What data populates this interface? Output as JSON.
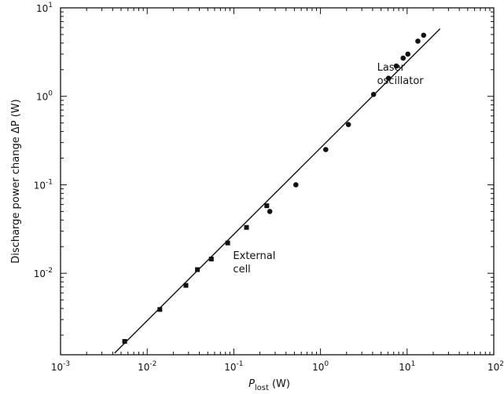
{
  "chart_data": {
    "type": "scatter",
    "x_scale": "log",
    "y_scale": "log",
    "xlim": [
      0.001,
      100
    ],
    "ylim": [
      0.0012,
      10
    ],
    "grid": false,
    "xlabel": {
      "main": "P",
      "sub": "lost",
      "unit": "(W)"
    },
    "ylabel": "Discharge power change ΔP (W)",
    "x_ticks": [
      {
        "value": 0.001,
        "base": "10",
        "exp": "-3"
      },
      {
        "value": 0.01,
        "base": "10",
        "exp": "-2"
      },
      {
        "value": 0.1,
        "base": "10",
        "exp": "-1"
      },
      {
        "value": 1,
        "base": "10",
        "exp": "0"
      },
      {
        "value": 10,
        "base": "10",
        "exp": "1"
      },
      {
        "value": 100,
        "base": "10",
        "exp": "2"
      }
    ],
    "y_ticks": [
      {
        "value": 0.01,
        "base": "10",
        "exp": "-2"
      },
      {
        "value": 0.1,
        "base": "10",
        "exp": "-1"
      },
      {
        "value": 1,
        "base": "10",
        "exp": "0"
      },
      {
        "value": 10,
        "base": "10",
        "exp": "1"
      }
    ],
    "series": [
      {
        "marker": "square",
        "points": [
          {
            "x": 0.0055,
            "y": 0.0017
          },
          {
            "x": 0.014,
            "y": 0.0039
          },
          {
            "x": 0.028,
            "y": 0.0073
          },
          {
            "x": 0.038,
            "y": 0.011
          },
          {
            "x": 0.055,
            "y": 0.0145
          },
          {
            "x": 0.085,
            "y": 0.022
          },
          {
            "x": 0.14,
            "y": 0.033
          },
          {
            "x": 0.24,
            "y": 0.058
          }
        ]
      },
      {
        "marker": "circle",
        "points": [
          {
            "x": 0.26,
            "y": 0.05
          },
          {
            "x": 0.52,
            "y": 0.1
          },
          {
            "x": 1.15,
            "y": 0.25
          },
          {
            "x": 2.1,
            "y": 0.48
          },
          {
            "x": 4.1,
            "y": 1.05
          },
          {
            "x": 6.1,
            "y": 1.6
          },
          {
            "x": 7.5,
            "y": 2.2
          },
          {
            "x": 9.0,
            "y": 2.7
          },
          {
            "x": 10.2,
            "y": 3.0
          },
          {
            "x": 13.3,
            "y": 4.2
          },
          {
            "x": 15.5,
            "y": 4.9
          }
        ]
      }
    ],
    "fit_line": [
      {
        "x": 0.0042,
        "y": 0.00125
      },
      {
        "x": 24,
        "y": 5.8
      }
    ],
    "annotations": [
      {
        "lines": [
          "External",
          "cell"
        ],
        "x": 0.098,
        "y": 0.0145
      },
      {
        "lines": [
          "Laser",
          "oscillator"
        ],
        "x": 4.5,
        "y": 1.95
      }
    ]
  }
}
